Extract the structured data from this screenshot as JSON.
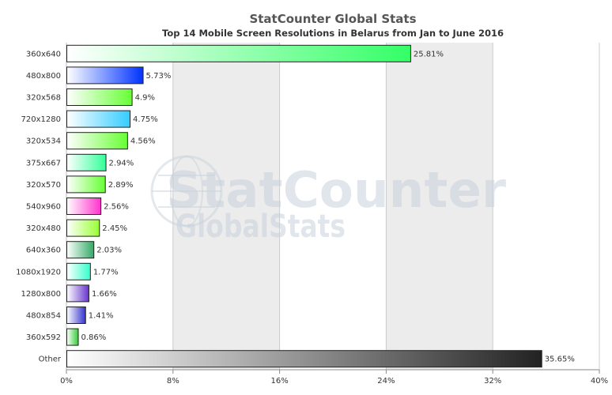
{
  "chart_data": {
    "type": "bar",
    "orientation": "horizontal",
    "title": "StatCounter Global Stats",
    "subtitle": "Top 14 Mobile Screen Resolutions in Belarus from Jan to June 2016",
    "categories": [
      "360x640",
      "480x800",
      "320x568",
      "720x1280",
      "320x534",
      "375x667",
      "320x570",
      "540x960",
      "320x480",
      "640x360",
      "1080x1920",
      "1280x800",
      "480x854",
      "360x592",
      "Other"
    ],
    "values": [
      25.81,
      5.73,
      4.9,
      4.75,
      4.56,
      2.94,
      2.89,
      2.56,
      2.45,
      2.03,
      1.77,
      1.66,
      1.41,
      0.86,
      35.65
    ],
    "value_labels": [
      "25.81%",
      "5.73%",
      "4.9%",
      "4.75%",
      "4.56%",
      "2.94%",
      "2.89%",
      "2.56%",
      "2.45%",
      "2.03%",
      "1.77%",
      "1.66%",
      "1.41%",
      "0.86%",
      "35.65%"
    ],
    "bar_colors": [
      "#33ff66",
      "#0033ff",
      "#66ff33",
      "#33ccff",
      "#66ff33",
      "#33ff99",
      "#66ff33",
      "#ff33cc",
      "#99ff33",
      "#33aa66",
      "#33ffcc",
      "#6633cc",
      "#3333cc",
      "#33cc33",
      "#222222"
    ],
    "xlim": [
      0,
      40
    ],
    "x_ticks": [
      0,
      8,
      16,
      24,
      32,
      40
    ],
    "x_tick_labels": [
      "0%",
      "8%",
      "16%",
      "24%",
      "32%",
      "40%"
    ],
    "grid": true,
    "alternating_bands": true
  },
  "watermark": {
    "line1": "StatCounter",
    "line2": "GlobalStats"
  }
}
